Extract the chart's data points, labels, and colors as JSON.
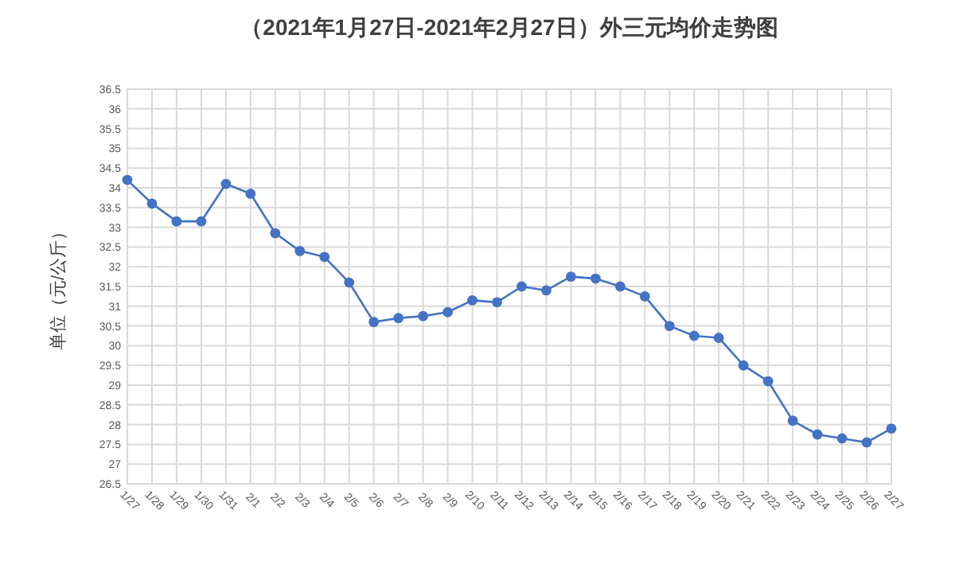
{
  "chart_data": {
    "type": "line",
    "title": "（2021年1月27日-2021年2月27日）外三元均价走势图",
    "ylabel": "单位（元/公斤）",
    "categories": [
      "1/27",
      "1/28",
      "1/29",
      "1/30",
      "1/31",
      "2/1",
      "2/2",
      "2/3",
      "2/4",
      "2/5",
      "2/6",
      "2/7",
      "2/8",
      "2/9",
      "2/10",
      "2/11",
      "2/12",
      "2/13",
      "2/14",
      "2/15",
      "2/16",
      "2/17",
      "2/18",
      "2/19",
      "2/20",
      "2/21",
      "2/22",
      "2/23",
      "2/24",
      "2/25",
      "2/26",
      "2/27"
    ],
    "series": [
      {
        "color": "#4472c4",
        "values": [
          34.2,
          33.6,
          33.15,
          33.15,
          34.1,
          33.85,
          32.85,
          32.4,
          32.25,
          31.6,
          30.6,
          30.7,
          30.75,
          30.85,
          31.15,
          31.1,
          31.5,
          31.4,
          31.75,
          31.7,
          31.5,
          31.25,
          30.5,
          30.25,
          30.2,
          29.5,
          29.1,
          28.1,
          27.75,
          27.65,
          27.55,
          27.9
        ]
      }
    ],
    "ylim": [
      26.5,
      36.5
    ],
    "yticks": [
      26.5,
      27,
      27.5,
      28,
      28.5,
      29,
      29.5,
      30,
      30.5,
      31,
      31.5,
      32,
      32.5,
      33,
      33.5,
      34,
      34.5,
      35,
      35.5,
      36,
      36.5
    ],
    "grid": true,
    "marker": "circle",
    "line_style": "solid"
  }
}
